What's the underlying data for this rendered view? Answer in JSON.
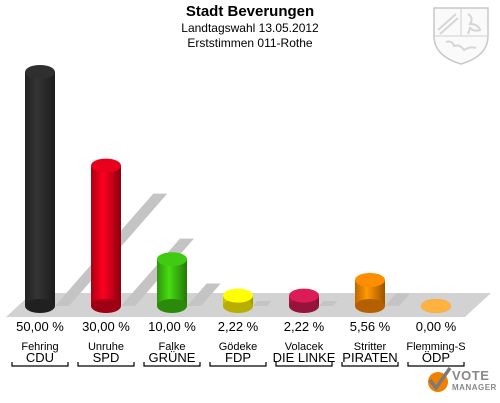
{
  "header": {
    "title": "Stadt Beverungen",
    "subtitle1": "Landtagswahl 13.05.2012",
    "subtitle2": "Erststimmen 011-Rothe"
  },
  "footer": {
    "brand_line1": "VOTE",
    "brand_line2": "MANAGER"
  },
  "icons": {
    "crest": "nrw-coat-of-arms-icon",
    "brand": "vote-manager-check-icon"
  },
  "chart_data": {
    "type": "bar",
    "title": "Stadt Beverungen",
    "subtitle": [
      "Landtagswahl 13.05.2012",
      "Erststimmen 011-Rothe"
    ],
    "ylim": [
      0,
      50
    ],
    "grid": false,
    "categories": [
      "CDU",
      "SPD",
      "GRÜNE",
      "FDP",
      "DIE LINKE",
      "PIRATEN",
      "ÖDP"
    ],
    "candidates": [
      "Fehring",
      "Unruhe",
      "Falke",
      "Gödeke",
      "Volacek",
      "Stritter",
      "Flemming-S"
    ],
    "values": [
      50.0,
      30.0,
      10.0,
      2.22,
      2.22,
      5.56,
      0.0
    ],
    "value_labels": [
      "50,00 %",
      "30,00 %",
      "10,00 %",
      "2,22 %",
      "2,22 %",
      "5,56 %",
      "0,00 %"
    ],
    "colors": [
      "#2b2b2b",
      "#d4001a",
      "#3ab80f",
      "#f5e800",
      "#c8194e",
      "#f08000",
      "#f5a23a"
    ]
  }
}
